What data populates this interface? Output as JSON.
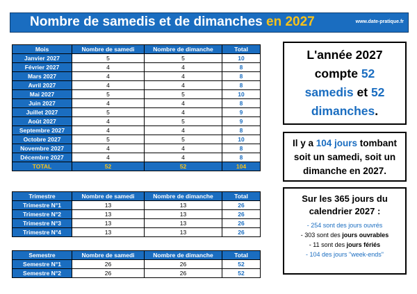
{
  "banner": {
    "title": "Nombre de samedis et de dimanches",
    "year": "en 2027",
    "site": "www.date-pratique.fr"
  },
  "months_table": {
    "headers": [
      "Mois",
      "Nombre de samedi",
      "Nombre de dimanche",
      "Total"
    ],
    "rows": [
      {
        "label": "Janvier 2027",
        "sat": "5",
        "sun": "5",
        "total": "10"
      },
      {
        "label": "Février 2027",
        "sat": "4",
        "sun": "4",
        "total": "8"
      },
      {
        "label": "Mars 2027",
        "sat": "4",
        "sun": "4",
        "total": "8"
      },
      {
        "label": "Avril 2027",
        "sat": "4",
        "sun": "4",
        "total": "8"
      },
      {
        "label": "Mai 2027",
        "sat": "5",
        "sun": "5",
        "total": "10"
      },
      {
        "label": "Juin 2027",
        "sat": "4",
        "sun": "4",
        "total": "8"
      },
      {
        "label": "Juillet 2027",
        "sat": "5",
        "sun": "4",
        "total": "9"
      },
      {
        "label": "Août 2027",
        "sat": "4",
        "sun": "5",
        "total": "9"
      },
      {
        "label": "Septembre 2027",
        "sat": "4",
        "sun": "4",
        "total": "8"
      },
      {
        "label": "Octobre 2027",
        "sat": "5",
        "sun": "5",
        "total": "10"
      },
      {
        "label": "Novembre 2027",
        "sat": "4",
        "sun": "4",
        "total": "8"
      },
      {
        "label": "Décembre 2027",
        "sat": "4",
        "sun": "4",
        "total": "8"
      }
    ],
    "total": {
      "label": "TOTAL",
      "sat": "52",
      "sun": "52",
      "total": "104"
    }
  },
  "quarters_table": {
    "headers": [
      "Trimestre",
      "Nombre de samedi",
      "Nombre de dimanche",
      "Total"
    ],
    "rows": [
      {
        "label": "Trimestre N°1",
        "sat": "13",
        "sun": "13",
        "total": "26"
      },
      {
        "label": "Trimestre N°2",
        "sat": "13",
        "sun": "13",
        "total": "26"
      },
      {
        "label": "Trimestre N°3",
        "sat": "13",
        "sun": "13",
        "total": "26"
      },
      {
        "label": "Trimestre N°4",
        "sat": "13",
        "sun": "13",
        "total": "26"
      }
    ]
  },
  "semesters_table": {
    "headers": [
      "Semestre",
      "Nombre de samedi",
      "Nombre de dimanche",
      "Total"
    ],
    "rows": [
      {
        "label": "Semestre N°1",
        "sat": "26",
        "sun": "26",
        "total": "52"
      },
      {
        "label": "Semestre N°2",
        "sat": "26",
        "sun": "26",
        "total": "52"
      }
    ]
  },
  "box_year": {
    "l1": "L'année 2027",
    "l2a": "compte ",
    "l2b": "52",
    "l3a": "samedis",
    "l3b": " et ",
    "l3c": "52",
    "l4a": "dimanches",
    "l4b": "."
  },
  "box_days": {
    "a": "Il y a ",
    "b": "104 jours",
    "c": " tombant",
    "l2": "soit un samedi, soit un",
    "l3": "dimanche en 2027."
  },
  "box_cal": {
    "head1": "Sur les 365 jours du",
    "head2": "calendrier 2027 :",
    "line1": "- 254 sont des jours ouvrés",
    "line2a": "- 303 sont des ",
    "line2b": "jours ouvrables",
    "line3a": "- 11 sont des ",
    "line3b": "jours fériés",
    "line4": "- 104 des jours \"week-ends\""
  },
  "colors": {
    "primary_blue": "#1a6dc0",
    "accent_yellow": "#f7c21b"
  }
}
